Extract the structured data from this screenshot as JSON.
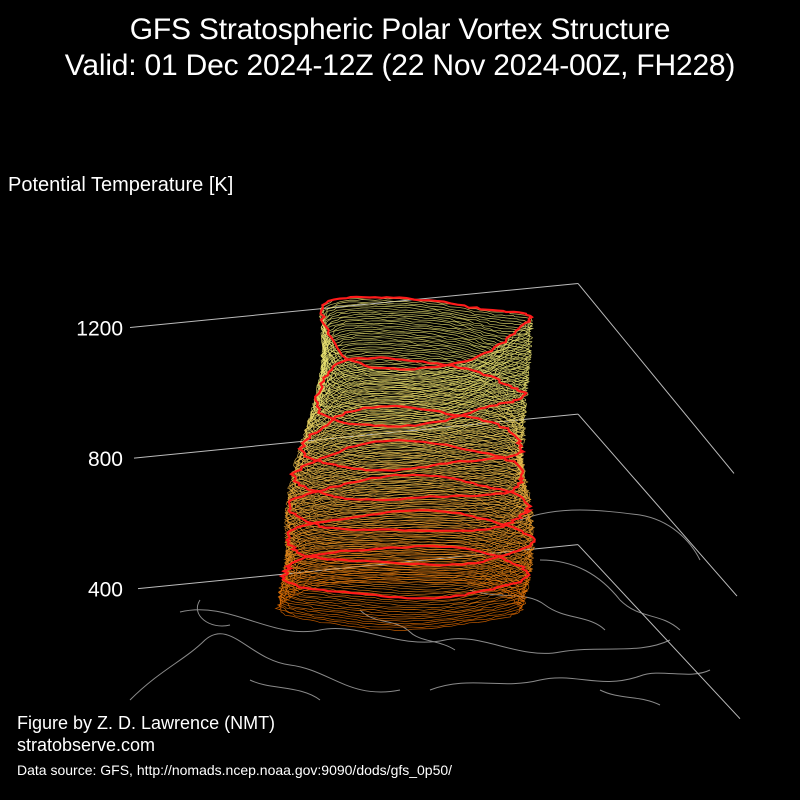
{
  "header": {
    "title_line1": "GFS Stratospheric Polar Vortex Structure",
    "title_line2": "Valid: 01 Dec 2024-12Z  (22 Nov 2024-00Z, FH228)"
  },
  "footer": {
    "credit_line1": "Figure by Z. D. Lawrence (NMT)",
    "credit_line2": "stratobserve.com",
    "data_source": "Data source: GFS, http://nomads.ncep.noaa.gov:9090/dods/gfs_0p50/"
  },
  "chart_data": {
    "type": "3d-isentropic-contour",
    "zlabel": "Potential Temperature [K]",
    "z_ticks": [
      400,
      800,
      1200
    ],
    "zlim": [
      350,
      1200
    ],
    "highlighted_levels_K": [
      450,
      550,
      650,
      750,
      850,
      1000,
      1200
    ],
    "colors": {
      "background": "#000000",
      "low_level": "#e06a00",
      "high_level": "#e8e070",
      "highlight": "#ff1a1a",
      "coastline": "#8a8a8a",
      "frame": "#bbbbbb"
    },
    "grid": true
  }
}
